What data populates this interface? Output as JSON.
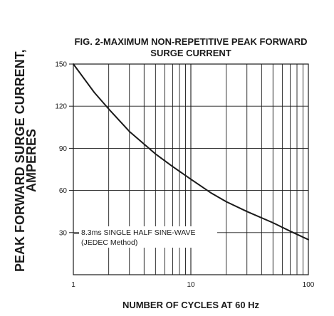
{
  "chart_data": {
    "type": "line",
    "title_line1": "FIG. 2-MAXIMUM NON-REPETITIVE PEAK FORWARD",
    "title_line2": "SURGE CURRENT",
    "ylabel_line1": "PEAK  FORWARD SURGE CURRENT,",
    "ylabel_line2": "AMPERES",
    "xlabel": "NUMBER OF CYCLES AT 60 Hz",
    "x_scale": "log",
    "xlim": [
      1,
      100
    ],
    "ylim": [
      0,
      150
    ],
    "x_ticks": [
      1,
      10,
      100
    ],
    "x_tick_labels": [
      "1",
      "10",
      "100"
    ],
    "y_ticks": [
      30,
      60,
      90,
      120,
      150
    ],
    "y_tick_labels": [
      "30",
      "60",
      "90",
      "120",
      "150"
    ],
    "grid": true,
    "annotation_line1": "8.3ms SINGLE HALF SINE-WAVE",
    "annotation_line2": "(JEDEC Method)",
    "series": [
      {
        "x": [
          1,
          1.5,
          2,
          3,
          4,
          5,
          7,
          10,
          15,
          20,
          30,
          50,
          70,
          100
        ],
        "y": [
          150,
          130,
          118,
          102,
          93,
          86,
          77,
          68,
          58,
          52,
          45,
          37,
          31,
          25
        ]
      }
    ]
  }
}
